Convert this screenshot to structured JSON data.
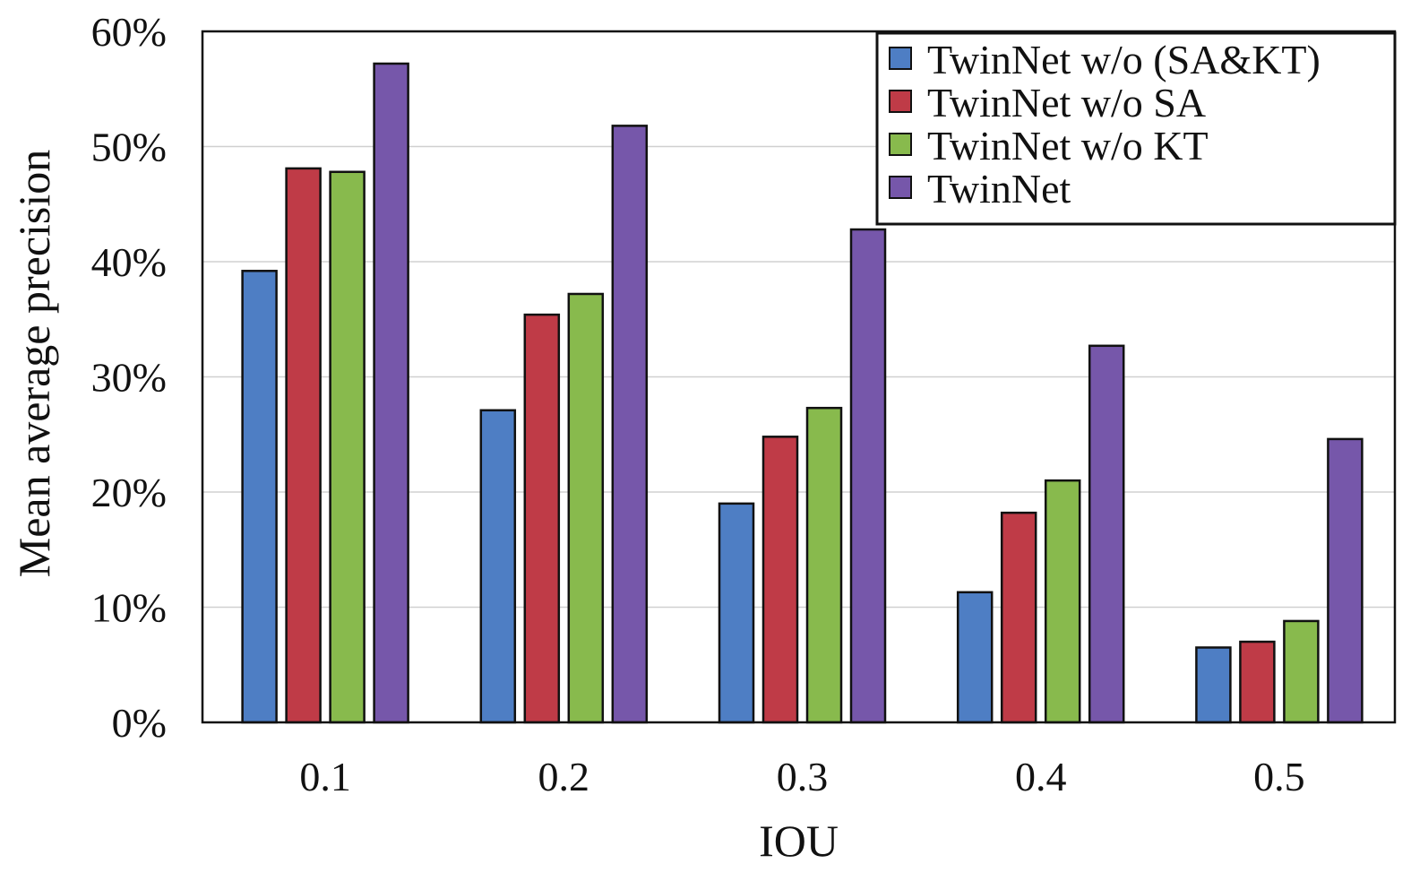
{
  "chart_data": {
    "type": "bar",
    "title": "",
    "xlabel": "IOU",
    "ylabel": "Mean average precision",
    "categories": [
      "0.1",
      "0.2",
      "0.3",
      "0.4",
      "0.5"
    ],
    "series": [
      {
        "name": "TwinNet w/o (SA&KT)",
        "color": "#4e7ec4",
        "values": [
          39.2,
          27.1,
          19.0,
          11.3,
          6.5
        ]
      },
      {
        "name": "TwinNet w/o SA",
        "color": "#bf3b47",
        "values": [
          48.1,
          35.4,
          24.8,
          18.2,
          7.0
        ]
      },
      {
        "name": "TwinNet w/o KT",
        "color": "#88ba4d",
        "values": [
          47.8,
          37.2,
          27.3,
          21.0,
          8.8
        ]
      },
      {
        "name": "TwinNet",
        "color": "#7657aa",
        "values": [
          57.2,
          51.8,
          42.8,
          32.7,
          24.6
        ]
      }
    ],
    "ylim": [
      0,
      60
    ],
    "yticks": [
      0,
      10,
      20,
      30,
      40,
      50,
      60
    ],
    "ytick_labels": [
      "0%",
      "10%",
      "20%",
      "30%",
      "40%",
      "50%",
      "60%"
    ],
    "grid": true,
    "legend": "top-right"
  }
}
